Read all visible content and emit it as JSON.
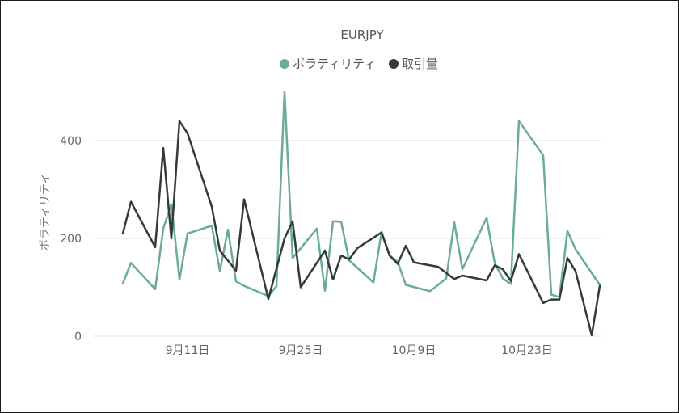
{
  "chart_data": {
    "type": "line",
    "title": "EURJPY",
    "ylabel": "ボラティリティ",
    "xlabel": "",
    "ylim": [
      0,
      500
    ],
    "yticks": [
      0,
      200,
      400
    ],
    "xticks": [
      {
        "label": "9月11日",
        "date": "2019-09-11"
      },
      {
        "label": "9月25日",
        "date": "2019-09-25"
      },
      {
        "label": "10月9日",
        "date": "2019-10-09"
      },
      {
        "label": "10月23日",
        "date": "2019-10-23"
      }
    ],
    "grid": true,
    "legend_position": "top",
    "series": [
      {
        "name": "ボラティリティ",
        "color": "#6aab9c",
        "points": [
          [
            "2019-09-03",
            108
          ],
          [
            "2019-09-04",
            150
          ],
          [
            "2019-09-07",
            96
          ],
          [
            "2019-09-08",
            220
          ],
          [
            "2019-09-09",
            270
          ],
          [
            "2019-09-10",
            116
          ],
          [
            "2019-09-11",
            210
          ],
          [
            "2019-09-14",
            226
          ],
          [
            "2019-09-15",
            133
          ],
          [
            "2019-09-16",
            218
          ],
          [
            "2019-09-17",
            112
          ],
          [
            "2019-09-18",
            103
          ],
          [
            "2019-09-21",
            82
          ],
          [
            "2019-09-22",
            102
          ],
          [
            "2019-09-23",
            500
          ],
          [
            "2019-09-24",
            160
          ],
          [
            "2019-09-27",
            220
          ],
          [
            "2019-09-28",
            93
          ],
          [
            "2019-09-29",
            235
          ],
          [
            "2019-09-30",
            234
          ],
          [
            "2019-10-01",
            155
          ],
          [
            "2019-10-04",
            110
          ],
          [
            "2019-10-05",
            213
          ],
          [
            "2019-10-06",
            165
          ],
          [
            "2019-10-07",
            152
          ],
          [
            "2019-10-08",
            105
          ],
          [
            "2019-10-11",
            92
          ],
          [
            "2019-10-12",
            105
          ],
          [
            "2019-10-13",
            118
          ],
          [
            "2019-10-14",
            233
          ],
          [
            "2019-10-15",
            137
          ],
          [
            "2019-10-18",
            242
          ],
          [
            "2019-10-19",
            150
          ],
          [
            "2019-10-20",
            118
          ],
          [
            "2019-10-21",
            107
          ],
          [
            "2019-10-22",
            440
          ],
          [
            "2019-10-25",
            370
          ],
          [
            "2019-10-26",
            85
          ],
          [
            "2019-10-27",
            80
          ],
          [
            "2019-10-28",
            215
          ],
          [
            "2019-10-29",
            178
          ],
          [
            "2019-11-01",
            105
          ]
        ]
      },
      {
        "name": "取引量",
        "color": "#333a3a",
        "points": [
          [
            "2019-09-03",
            210
          ],
          [
            "2019-09-04",
            275
          ],
          [
            "2019-09-07",
            182
          ],
          [
            "2019-09-08",
            385
          ],
          [
            "2019-09-09",
            200
          ],
          [
            "2019-09-10",
            440
          ],
          [
            "2019-09-11",
            415
          ],
          [
            "2019-09-14",
            265
          ],
          [
            "2019-09-15",
            175
          ],
          [
            "2019-09-17",
            134
          ],
          [
            "2019-09-18",
            280
          ],
          [
            "2019-09-21",
            76
          ],
          [
            "2019-09-23",
            200
          ],
          [
            "2019-09-24",
            235
          ],
          [
            "2019-09-25",
            100
          ],
          [
            "2019-09-28",
            175
          ],
          [
            "2019-09-29",
            116
          ],
          [
            "2019-09-30",
            165
          ],
          [
            "2019-10-01",
            157
          ],
          [
            "2019-10-02",
            180
          ],
          [
            "2019-10-05",
            212
          ],
          [
            "2019-10-06",
            165
          ],
          [
            "2019-10-07",
            148
          ],
          [
            "2019-10-08",
            185
          ],
          [
            "2019-10-09",
            151
          ],
          [
            "2019-10-12",
            142
          ],
          [
            "2019-10-14",
            117
          ],
          [
            "2019-10-15",
            124
          ],
          [
            "2019-10-18",
            114
          ],
          [
            "2019-10-19",
            145
          ],
          [
            "2019-10-20",
            137
          ],
          [
            "2019-10-21",
            113
          ],
          [
            "2019-10-22",
            168
          ],
          [
            "2019-10-25",
            68
          ],
          [
            "2019-10-26",
            75
          ],
          [
            "2019-10-27",
            75
          ],
          [
            "2019-10-28",
            160
          ],
          [
            "2019-10-29",
            133
          ],
          [
            "2019-10-31",
            2
          ],
          [
            "2019-11-01",
            103
          ]
        ]
      }
    ]
  }
}
